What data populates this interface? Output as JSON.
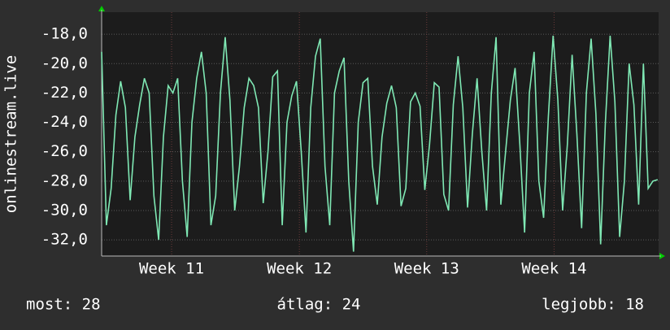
{
  "chart_data": {
    "type": "line",
    "y_label": "onlinestream.live",
    "ylim": [
      -33.1,
      -16.5
    ],
    "yticks": [
      {
        "value": -18,
        "label": "-18,0"
      },
      {
        "value": -20,
        "label": "-20,0"
      },
      {
        "value": -22,
        "label": "-22,0"
      },
      {
        "value": -24,
        "label": "-24,0"
      },
      {
        "value": -26,
        "label": "-26,0"
      },
      {
        "value": -28,
        "label": "-28,0"
      },
      {
        "value": -30,
        "label": "-30,0"
      },
      {
        "value": -32,
        "label": "-32,0"
      }
    ],
    "xlim": [
      0,
      29.3
    ],
    "xticks": [
      {
        "value": 3.68,
        "label": "Week 11"
      },
      {
        "value": 10.4,
        "label": "Week 12"
      },
      {
        "value": 17.1,
        "label": "Week 13"
      },
      {
        "value": 23.8,
        "label": "Week 14"
      }
    ],
    "grid": true,
    "series": [
      {
        "color": "#7fe8b4",
        "x": [
          0,
          0.25,
          0.5,
          0.75,
          1,
          1.25,
          1.5,
          1.75,
          2,
          2.25,
          2.5,
          2.75,
          3,
          3.25,
          3.5,
          3.75,
          4,
          4.25,
          4.5,
          4.75,
          5,
          5.25,
          5.5,
          5.75,
          6,
          6.25,
          6.5,
          6.75,
          7,
          7.25,
          7.5,
          7.75,
          8,
          8.25,
          8.5,
          8.75,
          9,
          9.25,
          9.5,
          9.75,
          10,
          10.25,
          10.5,
          10.75,
          11,
          11.25,
          11.5,
          11.75,
          12,
          12.25,
          12.5,
          12.75,
          13,
          13.25,
          13.5,
          13.75,
          14,
          14.25,
          14.5,
          14.75,
          15,
          15.25,
          15.5,
          15.75,
          16,
          16.25,
          16.5,
          16.75,
          17,
          17.25,
          17.5,
          17.75,
          18,
          18.25,
          18.5,
          18.75,
          19,
          19.25,
          19.5,
          19.75,
          20,
          20.25,
          20.5,
          20.75,
          21,
          21.25,
          21.5,
          21.75,
          22,
          22.25,
          22.5,
          22.75,
          23,
          23.25,
          23.5,
          23.75,
          24,
          24.25,
          24.5,
          24.75,
          25,
          25.25,
          25.5,
          25.75,
          26,
          26.25,
          26.5,
          26.75,
          27,
          27.25,
          27.5,
          27.75,
          28,
          28.25,
          28.5,
          28.75,
          29,
          29.25
        ],
        "values": [
          -19.2,
          -31,
          -28.5,
          -23.5,
          -21.2,
          -23,
          -29.3,
          -25,
          -22.8,
          -21,
          -22,
          -29,
          -32,
          -25,
          -21.5,
          -22,
          -21,
          -28,
          -31.8,
          -24,
          -21,
          -19.2,
          -22,
          -31,
          -29,
          -22,
          -18.2,
          -22.5,
          -30,
          -27,
          -23,
          -21,
          -21.5,
          -23,
          -29.5,
          -26,
          -20.9,
          -20.5,
          -31,
          -24,
          -22.2,
          -21.2,
          -26,
          -31.5,
          -23,
          -19.5,
          -18.3,
          -27,
          -31,
          -22,
          -20.5,
          -19.6,
          -28,
          -32.8,
          -24,
          -21.3,
          -21,
          -27,
          -29.6,
          -25,
          -22.7,
          -21.5,
          -23,
          -29.7,
          -28.5,
          -22.6,
          -22,
          -22.9,
          -28.6,
          -25.5,
          -21.3,
          -21.6,
          -28.9,
          -30,
          -22.8,
          -19.5,
          -23,
          -29.8,
          -24.8,
          -21,
          -26,
          -30,
          -22,
          -18.2,
          -29.6,
          -26,
          -22.5,
          -20.3,
          -25.5,
          -31.5,
          -22,
          -19.2,
          -28,
          -30.5,
          -23.6,
          -18.1,
          -22.5,
          -30,
          -25.5,
          -19.4,
          -24.8,
          -31.2,
          -22,
          -18.3,
          -23.4,
          -32.3,
          -24,
          -18.1,
          -22.6,
          -31.8,
          -28,
          -20,
          -22.8,
          -29.6,
          -20,
          -28.5,
          -28,
          -27.9
        ]
      }
    ],
    "footer": [
      "most: 28",
      "átlag: 24",
      "legjobb: 18"
    ]
  }
}
